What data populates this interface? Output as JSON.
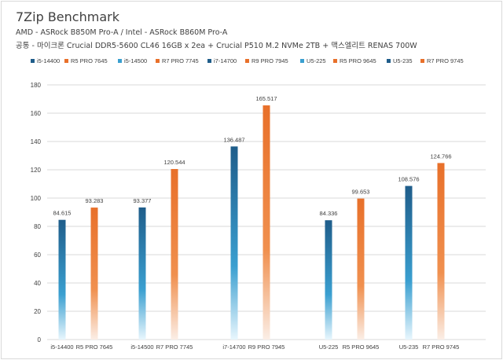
{
  "header": {
    "title": "7Zip Benchmark",
    "subtitle_1": "AMD - ASRock B850M Pro-A  /  Intel - ASRock B860M Pro-A",
    "subtitle_2": "공통 - 마이크론 Crucial DDR5-5600 CL46 16GB x 2ea + Crucial P510 M.2 NVMe 2TB + 맥스엘리트 RENAS 700W"
  },
  "colors": {
    "intel_top": "#1f5d8a",
    "intel_mid": "#3a9fd0",
    "intel_bottom": "#e8f6fd",
    "amd_top": "#e8702a",
    "amd_mid": "#f0904f",
    "amd_bottom": "#fbeee6",
    "grid": "#d9d9d9",
    "text": "#404040"
  },
  "chart_data": {
    "type": "bar",
    "title": "",
    "xlabel": "",
    "ylabel": "",
    "ylim": [
      0,
      180
    ],
    "yticks": [
      0,
      20,
      40,
      60,
      80,
      100,
      120,
      140,
      160,
      180
    ],
    "grid": true,
    "legend_position": "top",
    "categories": [
      "i5-14400",
      "R5 PRO 7645",
      "i5-14500",
      "R7 PRO 7745",
      "i7-14700",
      "R9 PRO 7945",
      "U5-225",
      "R5 PRO 9645",
      "U5-235",
      "R7 PRO 9745"
    ],
    "values": [
      84.615,
      93.283,
      93.377,
      120.544,
      136.487,
      165.517,
      84.336,
      99.653,
      108.576,
      124.766
    ],
    "value_labels": [
      "84.615",
      "93.283",
      "93.377",
      "120.544",
      "136.487",
      "165.517",
      "84.336",
      "99.653",
      "108.576",
      "124.766"
    ],
    "vendors": [
      "intel",
      "amd",
      "intel",
      "amd",
      "intel",
      "amd",
      "intel",
      "amd",
      "intel",
      "amd"
    ],
    "legend": [
      "i5-14400",
      "R5 PRO 7645",
      "i5-14500",
      "R7 PRO 7745",
      "i7-14700",
      "R9 PRO 7945",
      "U5-225",
      "R5 PRO 9645",
      "U5-235",
      "R7 PRO 9745"
    ]
  }
}
